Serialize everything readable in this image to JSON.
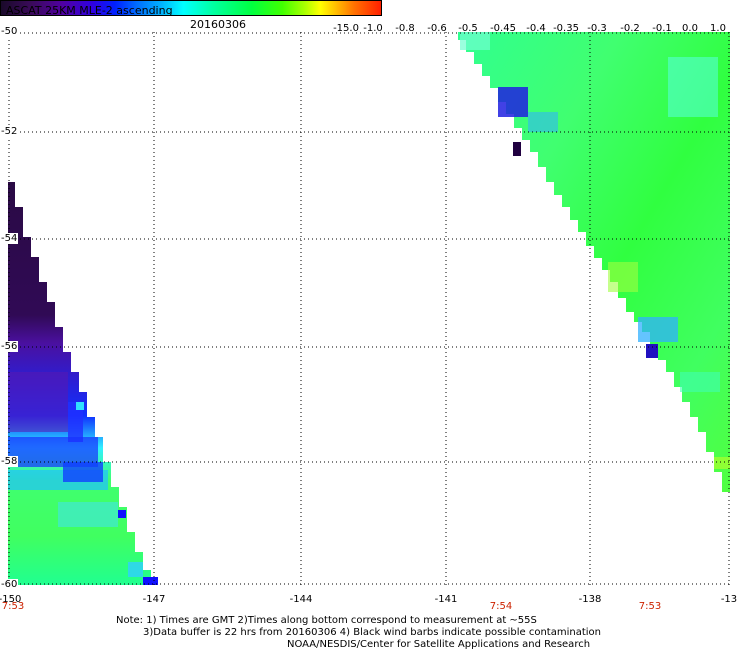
{
  "header": {
    "title": "ASCAT 25KM MLE-2 ascending",
    "date": "20160306"
  },
  "colorbar": {
    "labels": [
      "-15.0",
      "-1.0",
      "-0.8",
      "-0.6",
      "-0.5",
      "-0.45",
      "-0.4",
      "-0.35",
      "-0.3",
      "-0.2",
      "-0.1",
      "0.0",
      "1.0"
    ]
  },
  "axes": {
    "x_ticks": [
      "-150",
      "-147",
      "-144",
      "-141",
      "-138",
      "-13"
    ],
    "y_ticks": [
      "-50",
      "-52",
      "-54",
      "-56",
      "-58",
      "-60"
    ]
  },
  "time_labels": [
    "7:53",
    "7:54",
    "7:53"
  ],
  "notes": {
    "line1": "Note: 1) Times are GMT 2)Times along bottom correspond to measurement at ~55S",
    "line2": "3)Data buffer is 22 hrs from 20160306 4) Black wind barbs indicate possible contamination",
    "line3": "NOAA/NESDIS/Center for Satellite Applications and Research"
  }
}
